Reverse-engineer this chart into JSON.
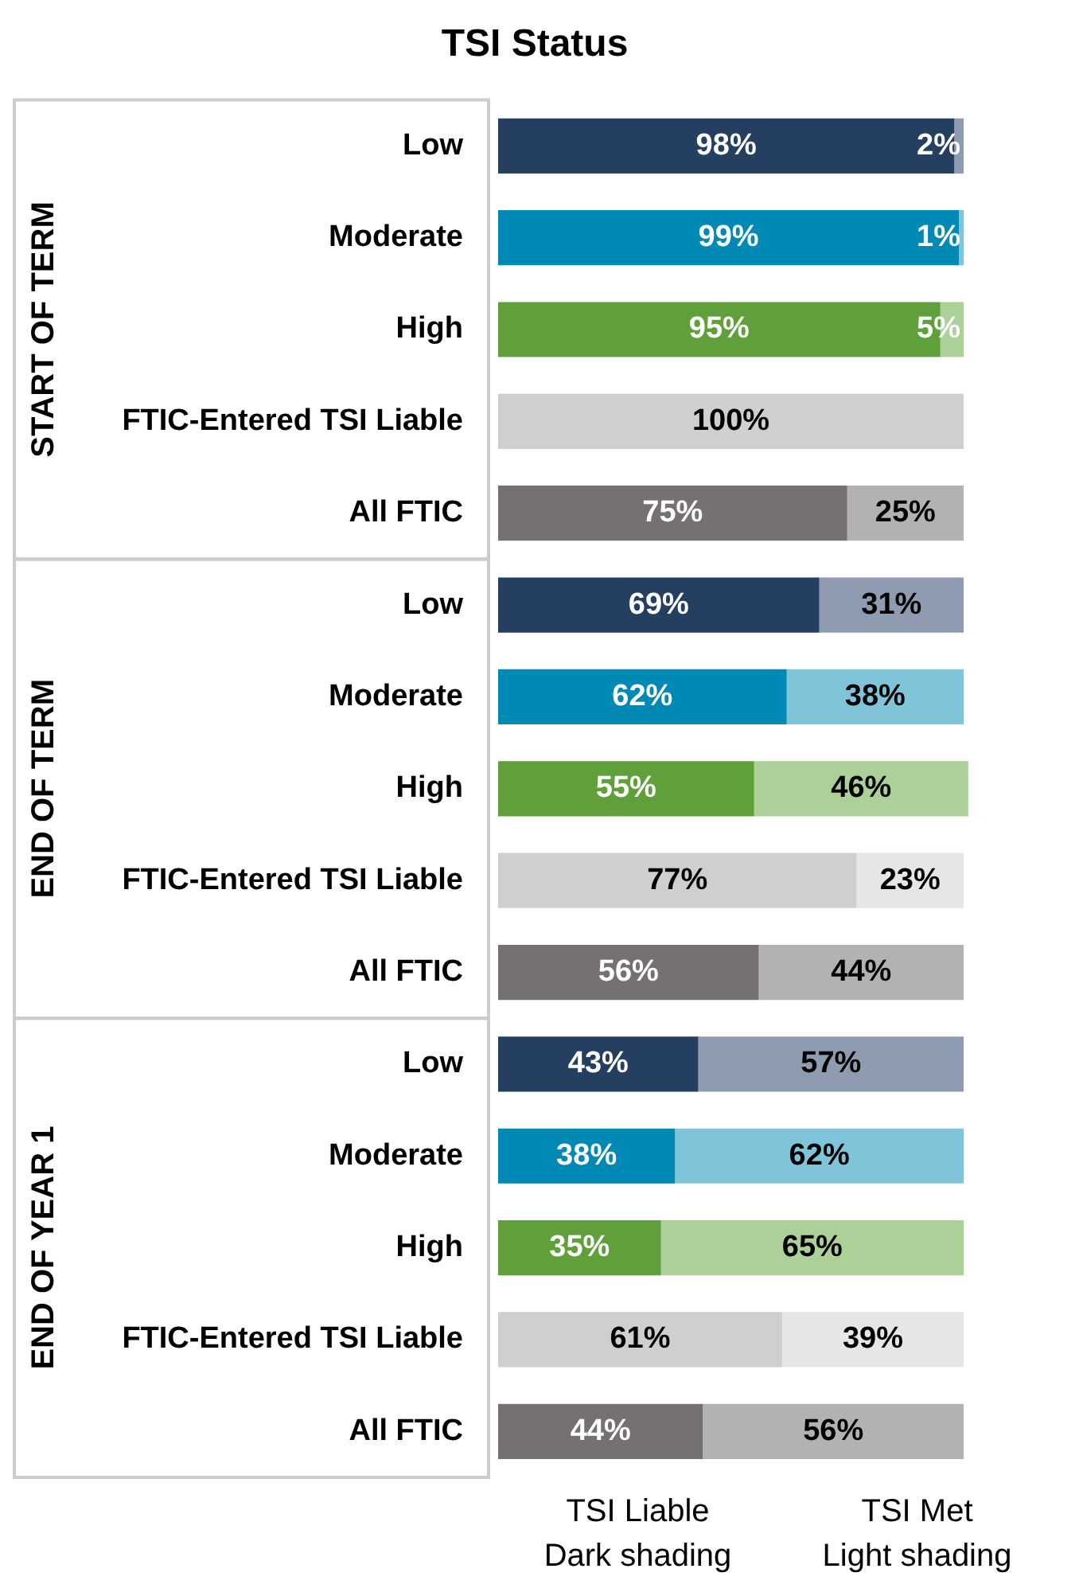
{
  "chart_data": {
    "type": "bar",
    "title": "TSI Status",
    "orientation": "horizontal",
    "stacked": true,
    "legend": false,
    "grid": false,
    "tick_labels": "y",
    "categories": [
      "Low",
      "Moderate",
      "High",
      "FTIC-Entered TSI Liable",
      "All FTIC",
      "Low",
      "Moderate",
      "High",
      "FTIC-Entered TSI Liable",
      "All FTIC",
      "Low",
      "Moderate",
      "High",
      "FTIC-Entered TSI Liable",
      "All FTIC"
    ],
    "series": [
      {
        "values": [
          98,
          99,
          95,
          100,
          75,
          69,
          62,
          55,
          77,
          56,
          43,
          38,
          35,
          61,
          44
        ],
        "value_labels": [
          "98%",
          "99%",
          "95%",
          "100%",
          "75%",
          "69%",
          "62%",
          "55%",
          "77%",
          "56%",
          "43%",
          "38%",
          "35%",
          "61%",
          "44%"
        ],
        "colors": [
          "#243f60",
          "#0089b5",
          "#5fa03a",
          "#d0cecf",
          "#767171",
          "#243f60",
          "#0089b5",
          "#5fa03a",
          "#d0cecf",
          "#767171",
          "#243f60",
          "#0089b5",
          "#5fa03a",
          "#d0cecf",
          "#767171"
        ]
      },
      {
        "values": [
          2,
          1,
          5,
          null,
          25,
          31,
          38,
          46,
          23,
          44,
          57,
          62,
          65,
          39,
          56
        ],
        "value_labels": [
          "2%",
          "1%",
          "5%",
          null,
          "25%",
          "31%",
          "38%",
          "46%",
          "23%",
          "44%",
          "57%",
          "62%",
          "65%",
          "39%",
          "56%"
        ],
        "colors": [
          "#8e9bb0",
          "#7fc4d8",
          "#acd098",
          "#e6e6e6",
          "#b3b1b1",
          "#8e9bb0",
          "#7fc4d8",
          "#acd098",
          "#e6e6e6",
          "#b3b1b1",
          "#8e9bb0",
          "#7fc4d8",
          "#acd098",
          "#e6e6e6",
          "#b3b1b1"
        ]
      }
    ],
    "annotations": [
      "START OF TERM",
      "END OF TERM",
      "END OF YEAR 1",
      "TSI Liable",
      "Dark shading",
      "TSI Met",
      "Light shading"
    ]
  }
}
